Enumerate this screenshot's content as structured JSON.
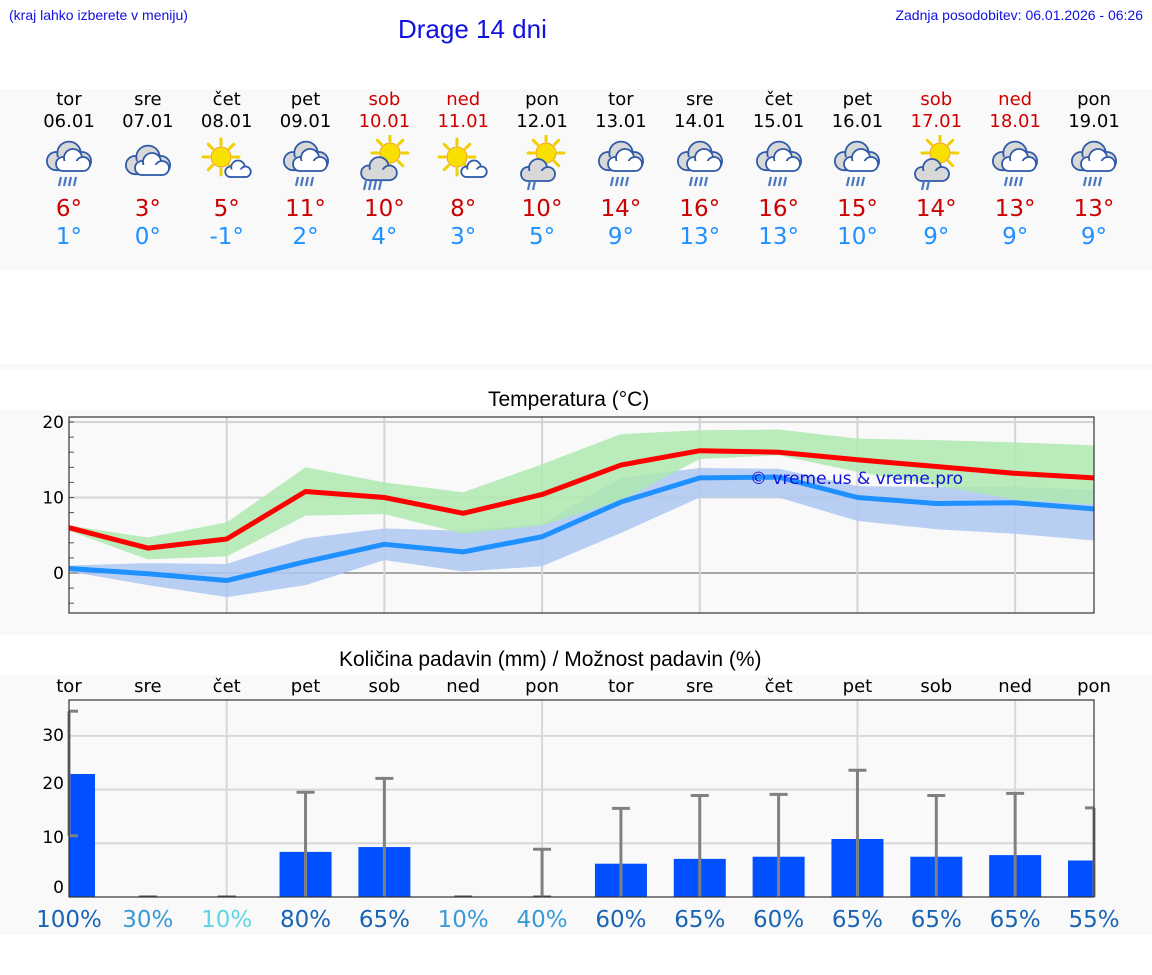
{
  "header": {
    "location_hint": "(kraj lahko izberete v meniju)",
    "title": "Drage 14 dni",
    "last_update": "Zadnja posodobitev: 06.01.2026 - 06:26"
  },
  "colors": {
    "header_text": "#1010e0",
    "weekday": "#000000",
    "weekend": "#d00000",
    "tmax": "#cc0000",
    "tmin": "#1e90ff",
    "tmax_line": "#ff0000",
    "tmin_line": "#1e90ff",
    "tmax_band": "#aee9b0",
    "tmin_band": "#adc8f2",
    "precip_bar": "#0050ff",
    "error_bar": "#808080",
    "panel_bg": "#f9f9f9"
  },
  "days": [
    {
      "name": "tor",
      "date": "06.01",
      "weekend": false,
      "icon": "cloud-heavy-rain-icon",
      "tmax": "6°",
      "tmin": "1°"
    },
    {
      "name": "sre",
      "date": "07.01",
      "weekend": false,
      "icon": "cloud-overcast-icon",
      "tmax": "3°",
      "tmin": "0°"
    },
    {
      "name": "čet",
      "date": "08.01",
      "weekend": false,
      "icon": "sun-small-cloud-icon",
      "tmax": "5°",
      "tmin": "-1°"
    },
    {
      "name": "pet",
      "date": "09.01",
      "weekend": false,
      "icon": "cloud-heavy-rain-icon",
      "tmax": "11°",
      "tmin": "2°"
    },
    {
      "name": "sob",
      "date": "10.01",
      "weekend": true,
      "icon": "sun-cloud-rain-icon",
      "tmax": "10°",
      "tmin": "4°"
    },
    {
      "name": "ned",
      "date": "11.01",
      "weekend": true,
      "icon": "sun-small-cloud-icon",
      "tmax": "8°",
      "tmin": "3°"
    },
    {
      "name": "pon",
      "date": "12.01",
      "weekend": false,
      "icon": "sun-cloud-light-rain-icon",
      "tmax": "10°",
      "tmin": "5°"
    },
    {
      "name": "tor",
      "date": "13.01",
      "weekend": false,
      "icon": "cloud-heavy-rain-icon",
      "tmax": "14°",
      "tmin": "9°"
    },
    {
      "name": "sre",
      "date": "14.01",
      "weekend": false,
      "icon": "cloud-heavy-rain-icon",
      "tmax": "16°",
      "tmin": "13°"
    },
    {
      "name": "čet",
      "date": "15.01",
      "weekend": false,
      "icon": "cloud-heavy-rain-icon",
      "tmax": "16°",
      "tmin": "13°"
    },
    {
      "name": "pet",
      "date": "16.01",
      "weekend": false,
      "icon": "cloud-heavy-rain-icon",
      "tmax": "15°",
      "tmin": "10°"
    },
    {
      "name": "sob",
      "date": "17.01",
      "weekend": true,
      "icon": "sun-cloud-light-rain-icon",
      "tmax": "14°",
      "tmin": "9°"
    },
    {
      "name": "ned",
      "date": "18.01",
      "weekend": true,
      "icon": "cloud-heavy-rain-icon",
      "tmax": "13°",
      "tmin": "9°"
    },
    {
      "name": "pon",
      "date": "19.01",
      "weekend": false,
      "icon": "cloud-heavy-rain-icon",
      "tmax": "13°",
      "tmin": "9°"
    }
  ],
  "temperature_chart": {
    "title": "Temperatura (°C)",
    "watermark": "© vreme.us & vreme.pro"
  },
  "precip_chart": {
    "title": "Količina padavin (mm) / Možnost padavin (%)",
    "probabilities": [
      {
        "label": "100%",
        "color": "#1a64b4"
      },
      {
        "label": "30%",
        "color": "#3a9ad6"
      },
      {
        "label": "10%",
        "color": "#5fd6e6"
      },
      {
        "label": "80%",
        "color": "#1a64b4"
      },
      {
        "label": "65%",
        "color": "#1a64b4"
      },
      {
        "label": "10%",
        "color": "#3a9ad6"
      },
      {
        "label": "40%",
        "color": "#3a9ad6"
      },
      {
        "label": "60%",
        "color": "#1a64b4"
      },
      {
        "label": "65%",
        "color": "#1a64b4"
      },
      {
        "label": "60%",
        "color": "#1a64b4"
      },
      {
        "label": "65%",
        "color": "#1a64b4"
      },
      {
        "label": "65%",
        "color": "#1a64b4"
      },
      {
        "label": "65%",
        "color": "#1a64b4"
      },
      {
        "label": "55%",
        "color": "#1a64b4"
      }
    ]
  },
  "chart_data": [
    {
      "type": "line",
      "title": "Temperatura (°C)",
      "xlabel": "",
      "ylabel": "°C",
      "ylim": [
        -5,
        20.5
      ],
      "yticks": [
        0,
        10,
        20
      ],
      "grid": true,
      "categories": [
        "06.01",
        "07.01",
        "08.01",
        "09.01",
        "10.01",
        "11.01",
        "12.01",
        "13.01",
        "14.01",
        "15.01",
        "16.01",
        "17.01",
        "18.01",
        "19.01"
      ],
      "series": [
        {
          "name": "Tmax",
          "color": "#ff0000",
          "values": [
            6,
            3.3,
            4.5,
            10.8,
            10,
            7.9,
            10.4,
            14.3,
            16.2,
            16,
            15,
            14.1,
            13.2,
            12.6
          ]
        },
        {
          "name": "Tmax band low",
          "values": [
            5.6,
            1.8,
            2.2,
            7.6,
            7.8,
            5.2,
            6.3,
            9.6,
            15.1,
            15.6,
            13.4,
            11.6,
            9.7,
            9.1
          ]
        },
        {
          "name": "Tmax band high",
          "values": [
            6.3,
            4.7,
            6.7,
            14,
            12,
            10.7,
            14.4,
            18.4,
            18.9,
            19,
            17.8,
            17.6,
            17.3,
            16.9
          ]
        },
        {
          "name": "Tmin",
          "color": "#1e90ff",
          "values": [
            0.6,
            -0.1,
            -1,
            1.5,
            3.8,
            2.8,
            4.8,
            9.4,
            12.6,
            12.7,
            10,
            9.2,
            9.3,
            8.5
          ]
        },
        {
          "name": "Tmin band low",
          "values": [
            0.2,
            -1.6,
            -3.2,
            -1.6,
            1.7,
            0.2,
            0.9,
            5.3,
            10,
            10,
            6.9,
            5.8,
            5.2,
            4.3
          ]
        },
        {
          "name": "Tmin band high",
          "values": [
            1,
            1.3,
            1.2,
            4.6,
            5.9,
            5.6,
            6.5,
            12.6,
            13.9,
            13.8,
            11.5,
            11.4,
            11.4,
            11
          ]
        }
      ],
      "annotations": [
        "© vreme.us & vreme.pro"
      ]
    },
    {
      "type": "bar",
      "title": "Količina padavin (mm) / Možnost padavin (%)",
      "xlabel": "",
      "ylabel": "mm",
      "ylim": [
        -2,
        37
      ],
      "yticks": [
        0,
        10,
        20,
        30
      ],
      "grid": true,
      "categories": [
        "tor",
        "sre",
        "čet",
        "pet",
        "sob",
        "ned",
        "pon",
        "tor",
        "sre",
        "čet",
        "pet",
        "sob",
        "ned",
        "pon"
      ],
      "series": [
        {
          "name": "Količina padavin (mm)",
          "color": "#0050ff",
          "values": [
            22.9,
            0,
            0,
            8.4,
            9.3,
            0,
            0,
            6.2,
            7.1,
            7.5,
            10.8,
            7.5,
            7.8,
            6.8
          ]
        },
        {
          "name": "Error bar low (mm)",
          "values": [
            11.4,
            0,
            0,
            0,
            0,
            0,
            0,
            0,
            0,
            0,
            0,
            0,
            0,
            0
          ]
        },
        {
          "name": "Error bar high (mm)",
          "values": [
            34.6,
            0,
            0,
            19.5,
            22.1,
            0,
            8.9,
            16.5,
            18.9,
            19.1,
            23.6,
            18.9,
            19.3,
            16.6
          ]
        },
        {
          "name": "Možnost padavin (%)",
          "values": [
            100,
            30,
            10,
            80,
            65,
            10,
            40,
            60,
            65,
            60,
            65,
            65,
            65,
            55
          ]
        }
      ]
    }
  ]
}
